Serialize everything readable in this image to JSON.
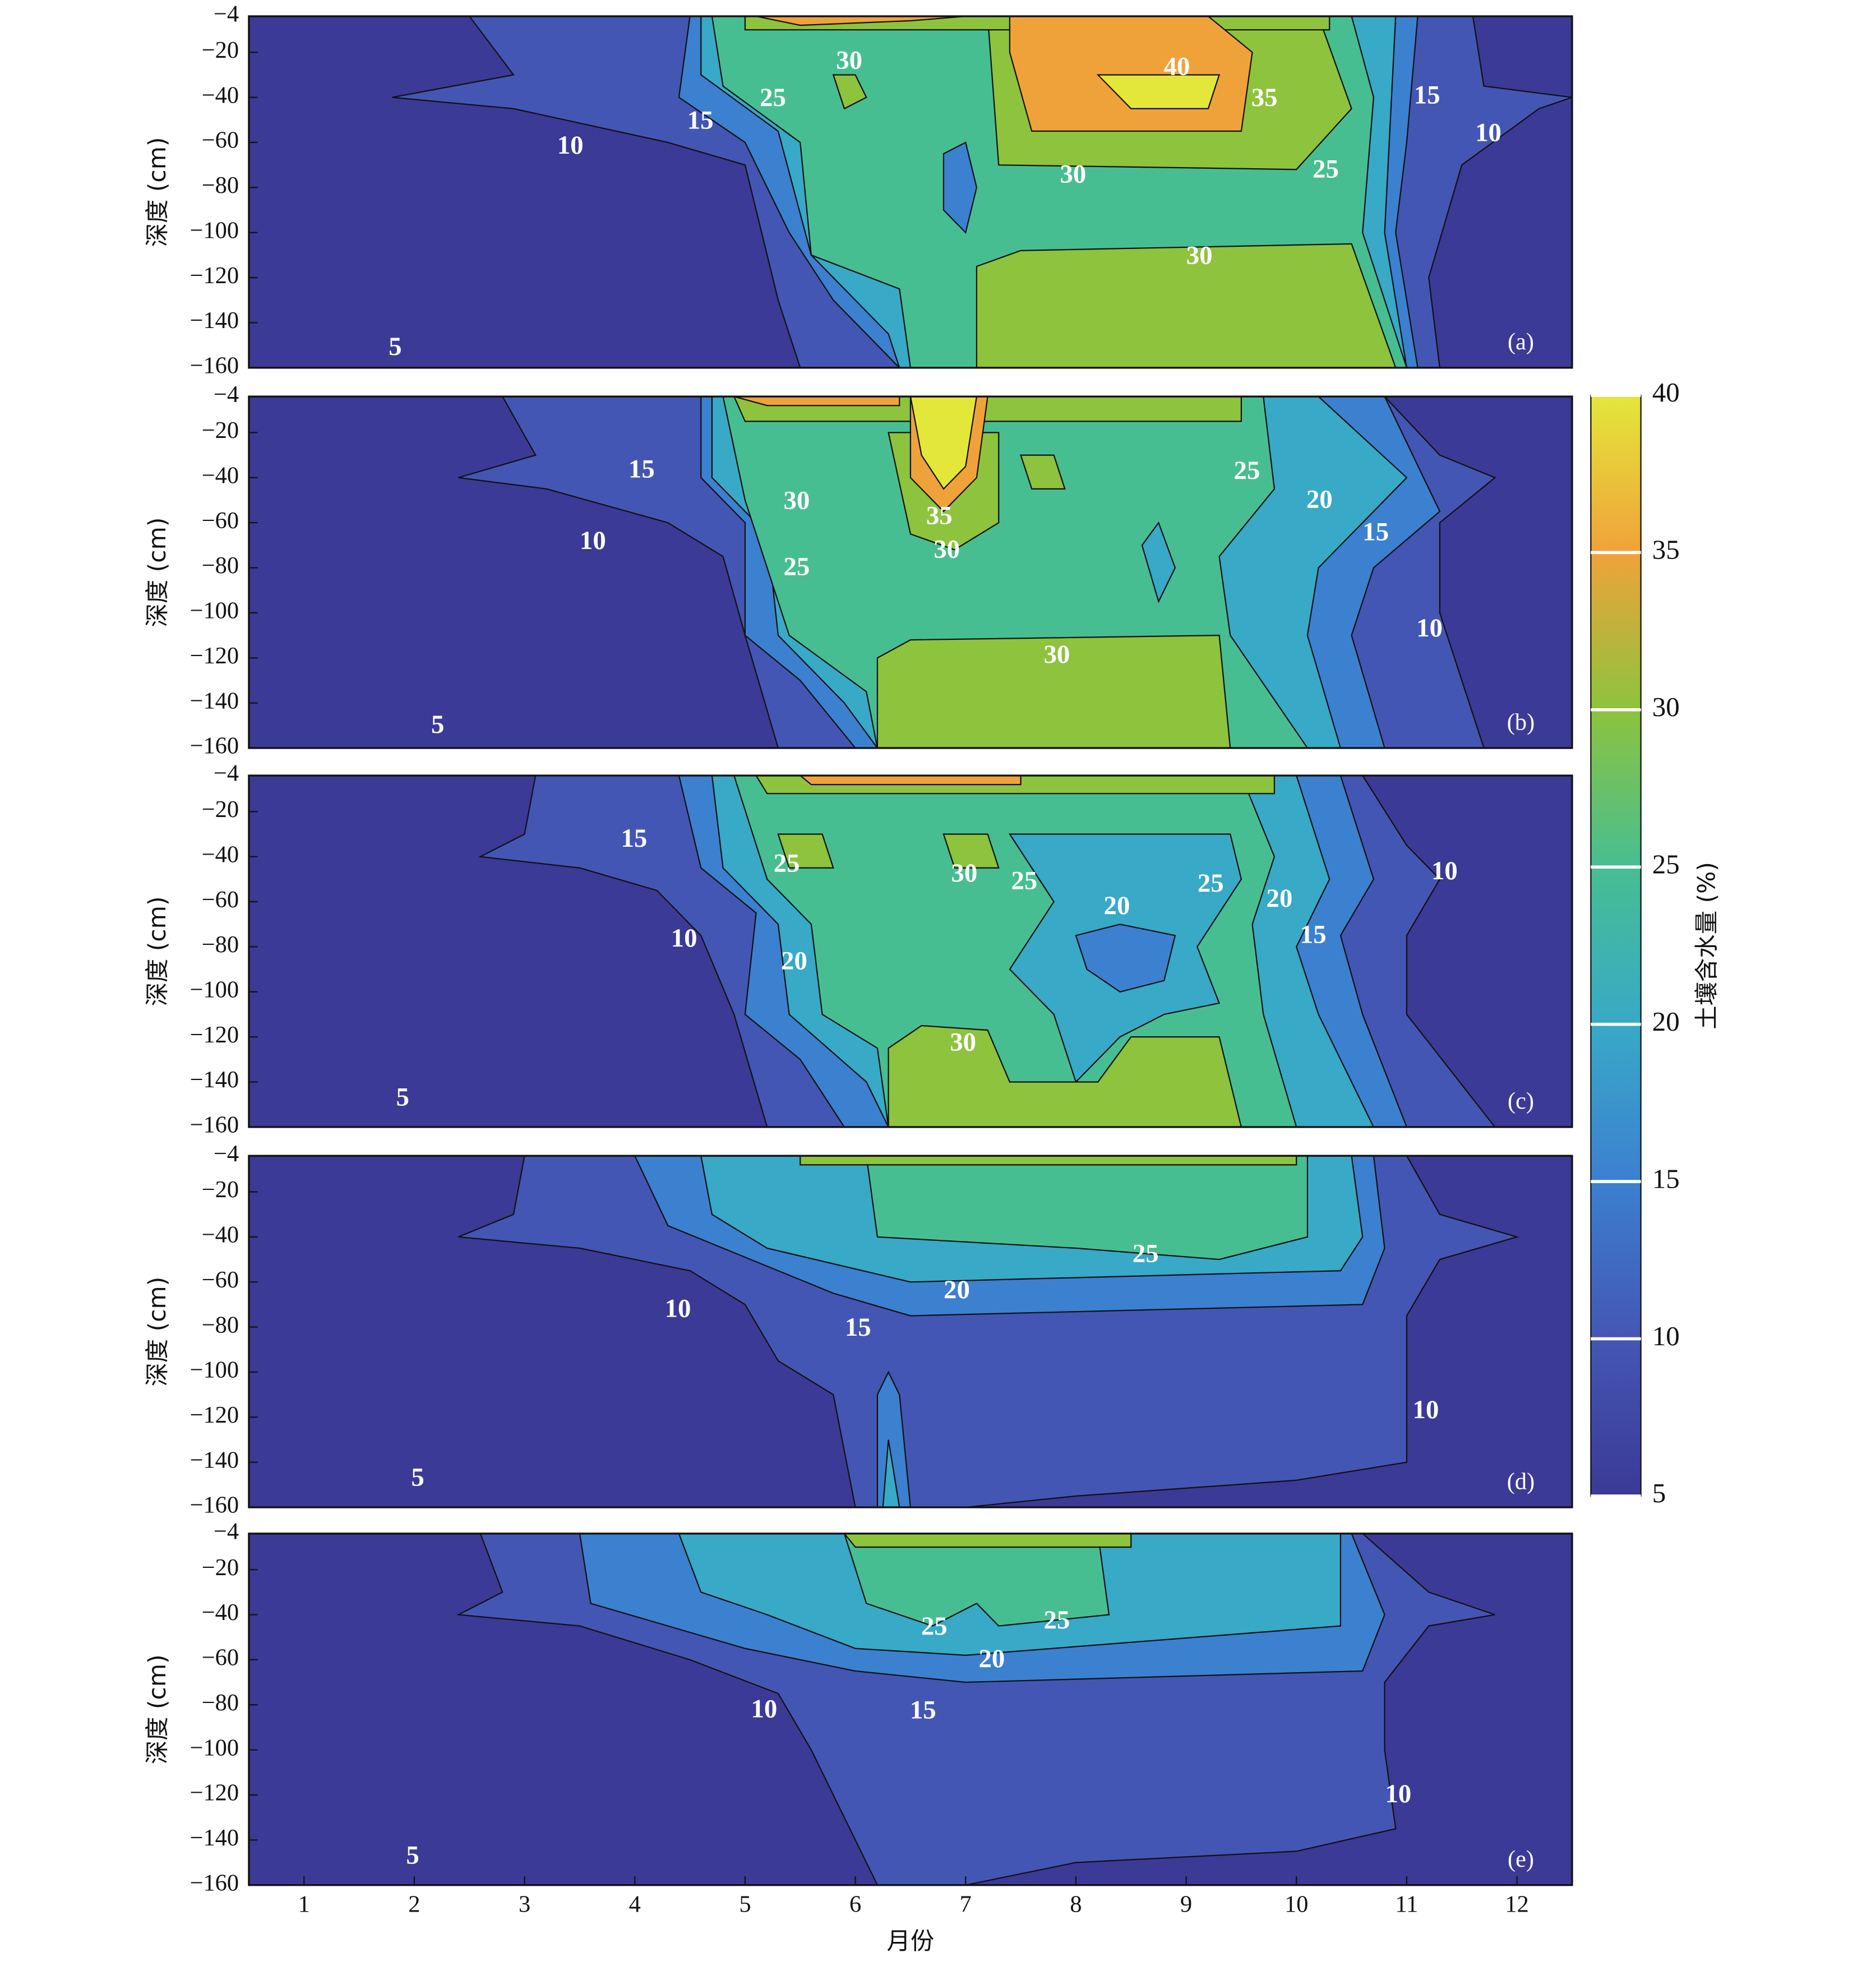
{
  "chart_data": [
    {
      "type": "contour",
      "panel_label": "(a)",
      "ylabel": "深度 (cm)",
      "xlim": [
        0.5,
        12.5
      ],
      "ylim": [
        -160,
        -4
      ],
      "yticks": [
        {
          "value": -4,
          "label": "−4"
        },
        {
          "value": -20,
          "label": "−20"
        },
        {
          "value": -40,
          "label": "−40"
        },
        {
          "value": -60,
          "label": "−60"
        },
        {
          "value": -80,
          "label": "−80"
        },
        {
          "value": -100,
          "label": "−100"
        },
        {
          "value": -120,
          "label": "−120"
        },
        {
          "value": -140,
          "label": "−140"
        },
        {
          "value": -160,
          "label": "−160"
        }
      ],
      "contour_labels": [
        30,
        25,
        15,
        10,
        40,
        35,
        15,
        10,
        30,
        25,
        30,
        5
      ]
    },
    {
      "type": "contour",
      "panel_label": "(b)",
      "ylabel": "深度 (cm)",
      "xlim": [
        0.5,
        12.5
      ],
      "ylim": [
        -160,
        -4
      ],
      "yticks": [
        {
          "value": -4,
          "label": "−4"
        },
        {
          "value": -20,
          "label": "−20"
        },
        {
          "value": -40,
          "label": "−40"
        },
        {
          "value": -60,
          "label": "−60"
        },
        {
          "value": -80,
          "label": "−80"
        },
        {
          "value": -100,
          "label": "−100"
        },
        {
          "value": -120,
          "label": "−120"
        },
        {
          "value": -140,
          "label": "−140"
        },
        {
          "value": -160,
          "label": "−160"
        }
      ],
      "contour_labels": [
        15,
        10,
        30,
        25,
        35,
        30,
        30,
        25,
        20,
        15,
        10,
        5
      ]
    },
    {
      "type": "contour",
      "panel_label": "(c)",
      "ylabel": "深度 (cm)",
      "xlim": [
        0.5,
        12.5
      ],
      "ylim": [
        -160,
        -4
      ],
      "yticks": [
        {
          "value": -4,
          "label": "−4"
        },
        {
          "value": -20,
          "label": "−20"
        },
        {
          "value": -40,
          "label": "−40"
        },
        {
          "value": -60,
          "label": "−60"
        },
        {
          "value": -80,
          "label": "−80"
        },
        {
          "value": -100,
          "label": "−100"
        },
        {
          "value": -120,
          "label": "−120"
        },
        {
          "value": -140,
          "label": "−140"
        },
        {
          "value": -160,
          "label": "−160"
        }
      ],
      "contour_labels": [
        15,
        25,
        30,
        25,
        20,
        25,
        20,
        15,
        10,
        10,
        20,
        30,
        5
      ]
    },
    {
      "type": "contour",
      "panel_label": "(d)",
      "ylabel": "深度 (cm)",
      "xlim": [
        0.5,
        12.5
      ],
      "ylim": [
        -160,
        -4
      ],
      "yticks": [
        {
          "value": -4,
          "label": "−4"
        },
        {
          "value": -20,
          "label": "−20"
        },
        {
          "value": -40,
          "label": "−40"
        },
        {
          "value": -60,
          "label": "−60"
        },
        {
          "value": -80,
          "label": "−80"
        },
        {
          "value": -100,
          "label": "−100"
        },
        {
          "value": -120,
          "label": "−120"
        },
        {
          "value": -140,
          "label": "−140"
        },
        {
          "value": -160,
          "label": "−160"
        }
      ],
      "contour_labels": [
        25,
        20,
        10,
        15,
        10,
        5
      ]
    },
    {
      "type": "contour",
      "panel_label": "(e)",
      "ylabel": "深度 (cm)",
      "xlabel": "月份",
      "xlim": [
        0.5,
        12.5
      ],
      "ylim": [
        -160,
        -4
      ],
      "xticks": [
        1,
        2,
        3,
        4,
        5,
        6,
        7,
        8,
        9,
        10,
        11,
        12
      ],
      "yticks": [
        {
          "value": -4,
          "label": "−4"
        },
        {
          "value": -20,
          "label": "−20"
        },
        {
          "value": -40,
          "label": "−40"
        },
        {
          "value": -60,
          "label": "−60"
        },
        {
          "value": -80,
          "label": "−80"
        },
        {
          "value": -100,
          "label": "−100"
        },
        {
          "value": -120,
          "label": "−120"
        },
        {
          "value": -140,
          "label": "−140"
        },
        {
          "value": -160,
          "label": "−160"
        }
      ],
      "contour_labels": [
        25,
        25,
        20,
        10,
        15,
        10,
        5
      ]
    }
  ],
  "colorbar": {
    "label": "土壤含水量 (%)",
    "lim": [
      5,
      40
    ],
    "ticks": [
      5,
      10,
      15,
      20,
      25,
      30,
      35,
      40
    ],
    "colors": [
      "#3b3a96",
      "#4456b4",
      "#3c80d0",
      "#38a9c6",
      "#47be92",
      "#8dc33d",
      "#f0a23a",
      "#e3e73a"
    ]
  }
}
